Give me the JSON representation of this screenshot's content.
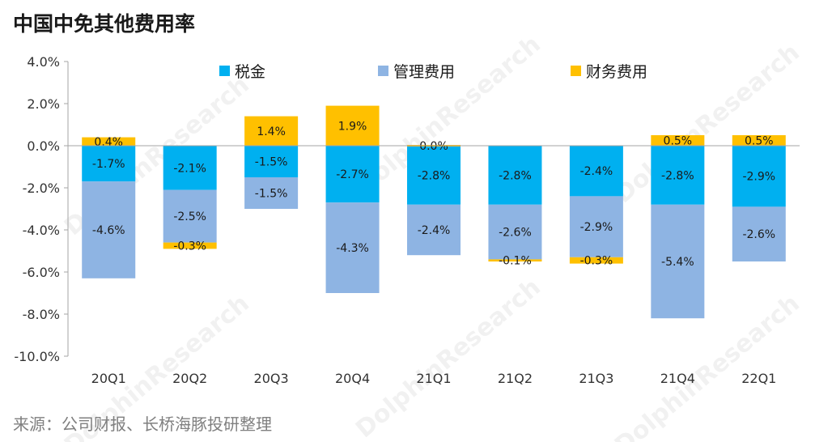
{
  "title": "中国中免其他费用率",
  "source": "来源：公司财报、长桥海豚投研整理",
  "watermark": "DolphinResearch",
  "chart_data": {
    "type": "bar",
    "stacked": true,
    "title": "中国中免其他费用率",
    "categories": [
      "20Q1",
      "20Q2",
      "20Q3",
      "20Q4",
      "21Q1",
      "21Q2",
      "21Q3",
      "21Q4",
      "22Q1"
    ],
    "ylim": [
      -10,
      4
    ],
    "yticks": [
      4,
      2,
      0,
      -2,
      -4,
      -6,
      -8,
      -10
    ],
    "ytick_labels": [
      "4.0%",
      "2.0%",
      "0.0%",
      "-2.0%",
      "-4.0%",
      "-6.0%",
      "-8.0%",
      "-10.0%"
    ],
    "grid": false,
    "legend_position": "top",
    "series": [
      {
        "name": "税金",
        "color": "#00B0F0",
        "values": [
          -1.7,
          -2.1,
          -1.5,
          -2.7,
          -2.8,
          -2.8,
          -2.4,
          -2.8,
          -2.9
        ],
        "labels": [
          "-1.7%",
          "-2.1%",
          "-1.5%",
          "-2.7%",
          "-2.8%",
          "-2.8%",
          "-2.4%",
          "-2.8%",
          "-2.9%"
        ]
      },
      {
        "name": "管理费用",
        "color": "#8EB4E3",
        "values": [
          -4.6,
          -2.5,
          -1.5,
          -4.3,
          -2.4,
          -2.6,
          -2.9,
          -5.4,
          -2.6
        ],
        "labels": [
          "-4.6%",
          "-2.5%",
          "-1.5%",
          "-4.3%",
          "-2.4%",
          "-2.6%",
          "-2.9%",
          "-5.4%",
          "-2.6%"
        ]
      },
      {
        "name": "财务费用",
        "color": "#FFC000",
        "values": [
          0.4,
          -0.3,
          1.4,
          1.9,
          0.0,
          -0.1,
          -0.3,
          0.5,
          0.5
        ],
        "labels": [
          "0.4%",
          "-0.3%",
          "1.4%",
          "1.9%",
          "0.0%",
          "-0.1%",
          "-0.3%",
          "0.5%",
          "0.5%"
        ]
      }
    ]
  }
}
